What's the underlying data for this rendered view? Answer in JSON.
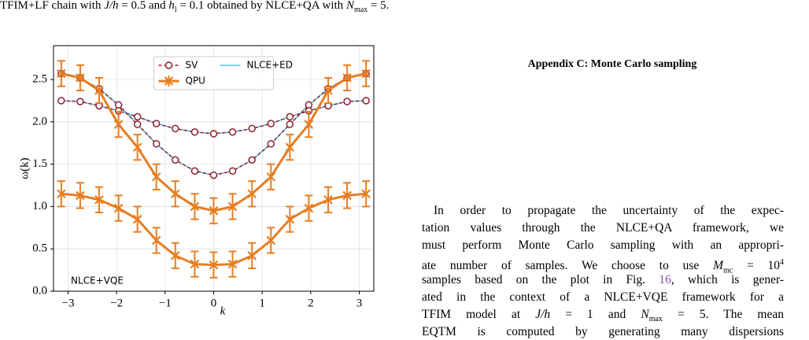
{
  "caption": [
    "TFIM+LF chain with ",
    "J/h",
    " = 0.5 and ",
    "h",
    "l",
    " = 0.1 obtained by NLCE+QA with ",
    "N",
    "max",
    " = 5."
  ],
  "chart_data": {
    "type": "line",
    "xlabel": "k",
    "ylabel": "ω(k)",
    "annotation": "NLCE+VQE",
    "x": [
      -3.14,
      -2.75,
      -2.36,
      -1.96,
      -1.57,
      -1.18,
      -0.79,
      -0.39,
      0,
      0.39,
      0.79,
      1.18,
      1.57,
      1.96,
      2.36,
      2.75,
      3.14
    ],
    "xlim": [
      -3.3,
      3.3
    ],
    "ylim": [
      0,
      2.9
    ],
    "xticks": [
      {
        "value": -3,
        "label": "−3"
      },
      {
        "value": -2,
        "label": "−2"
      },
      {
        "value": -1,
        "label": "−1"
      },
      0,
      1,
      2,
      3
    ],
    "yticks": [
      {
        "value": 0,
        "label": "0.0"
      },
      {
        "value": 0.5,
        "label": "0.5"
      },
      {
        "value": 1,
        "label": "1.0"
      },
      {
        "value": 1.5,
        "label": "1.5"
      },
      {
        "value": 2,
        "label": "2.0"
      },
      {
        "value": 2.5,
        "label": "2.5"
      }
    ],
    "grid": true,
    "legend": "upper center",
    "series": [
      {
        "name": "SV",
        "color": "#8b1e2e",
        "marker": "o",
        "linestyle": "dashed",
        "values": [
          [
            2.57,
            2.52,
            2.39,
            2.2,
            1.97,
            1.74,
            1.55,
            1.42,
            1.37,
            1.42,
            1.55,
            1.74,
            1.97,
            2.2,
            2.39,
            2.52,
            2.57
          ],
          [
            2.25,
            2.24,
            2.19,
            2.13,
            2.06,
            1.98,
            1.92,
            1.88,
            1.86,
            1.88,
            1.92,
            1.98,
            2.06,
            2.13,
            2.19,
            2.24,
            2.25
          ]
        ]
      },
      {
        "name": "QPU",
        "color": "#e67e22",
        "marker": "x",
        "linestyle": "solid",
        "error": 0.15,
        "values": [
          [
            2.57,
            2.52,
            2.37,
            1.97,
            1.7,
            1.35,
            1.15,
            1.0,
            0.95,
            1.0,
            1.15,
            1.35,
            1.7,
            1.97,
            2.37,
            2.52,
            2.57
          ],
          [
            1.15,
            1.13,
            1.08,
            0.98,
            0.85,
            0.6,
            0.42,
            0.32,
            0.31,
            0.32,
            0.42,
            0.6,
            0.85,
            0.98,
            1.08,
            1.13,
            1.15
          ]
        ]
      },
      {
        "name": "NLCE+ED",
        "color": "#5bc0de",
        "linestyle": "solid",
        "values": [
          [
            2.57,
            2.52,
            2.39,
            2.2,
            1.97,
            1.74,
            1.55,
            1.42,
            1.37,
            1.42,
            1.55,
            1.74,
            1.97,
            2.2,
            2.39,
            2.52,
            2.57
          ],
          [
            2.25,
            2.24,
            2.19,
            2.13,
            2.06,
            1.98,
            1.92,
            1.88,
            1.86,
            1.88,
            1.92,
            1.98,
            2.06,
            2.13,
            2.19,
            2.24,
            2.25
          ]
        ]
      }
    ]
  },
  "appendix": {
    "heading": "Appendix C: Monte Carlo sampling",
    "paragraph": [
      [
        "In order to propagate the uncertainty of the expec-"
      ],
      [
        "tation values through the NLCE+QA framework, we"
      ],
      [
        "must perform Monte Carlo sampling with an appropri-"
      ],
      [
        "ate number of samples. We choose to use ",
        "M",
        "mc",
        " = 10",
        "4"
      ],
      [
        "samples based on the plot in Fig. ",
        "16",
        ", which is gener-"
      ],
      [
        "ated in the context of a NLCE+VQE framework for a"
      ],
      [
        "TFIM model at ",
        "J/h",
        " = 1 and ",
        "N",
        "max",
        " = 5. The mean"
      ],
      [
        "EQTM is computed by generating many dispersions"
      ]
    ]
  }
}
